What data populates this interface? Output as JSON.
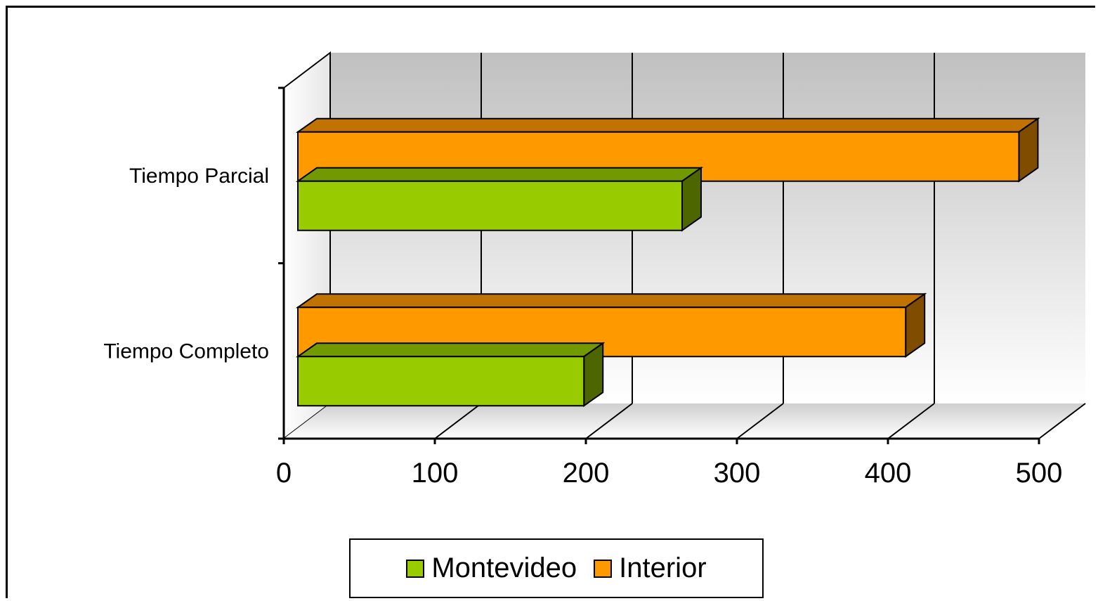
{
  "chart_data": {
    "type": "bar",
    "orientation": "horizontal",
    "style": "3d",
    "categories": [
      "Tiempo Completo",
      "Tiempo Parcial"
    ],
    "series": [
      {
        "name": "Montevideo",
        "values": [
          195,
          260
        ],
        "color": "#99CC00",
        "side_color": "#4D6600"
      },
      {
        "name": "Interior",
        "values": [
          408,
          483
        ],
        "color": "#FF9900",
        "side_color": "#804C00"
      }
    ],
    "x_ticks": [
      "0",
      "100",
      "200",
      "300",
      "400",
      "500"
    ],
    "xlim": [
      0,
      500
    ],
    "grid": true,
    "legend_position": "bottom"
  }
}
